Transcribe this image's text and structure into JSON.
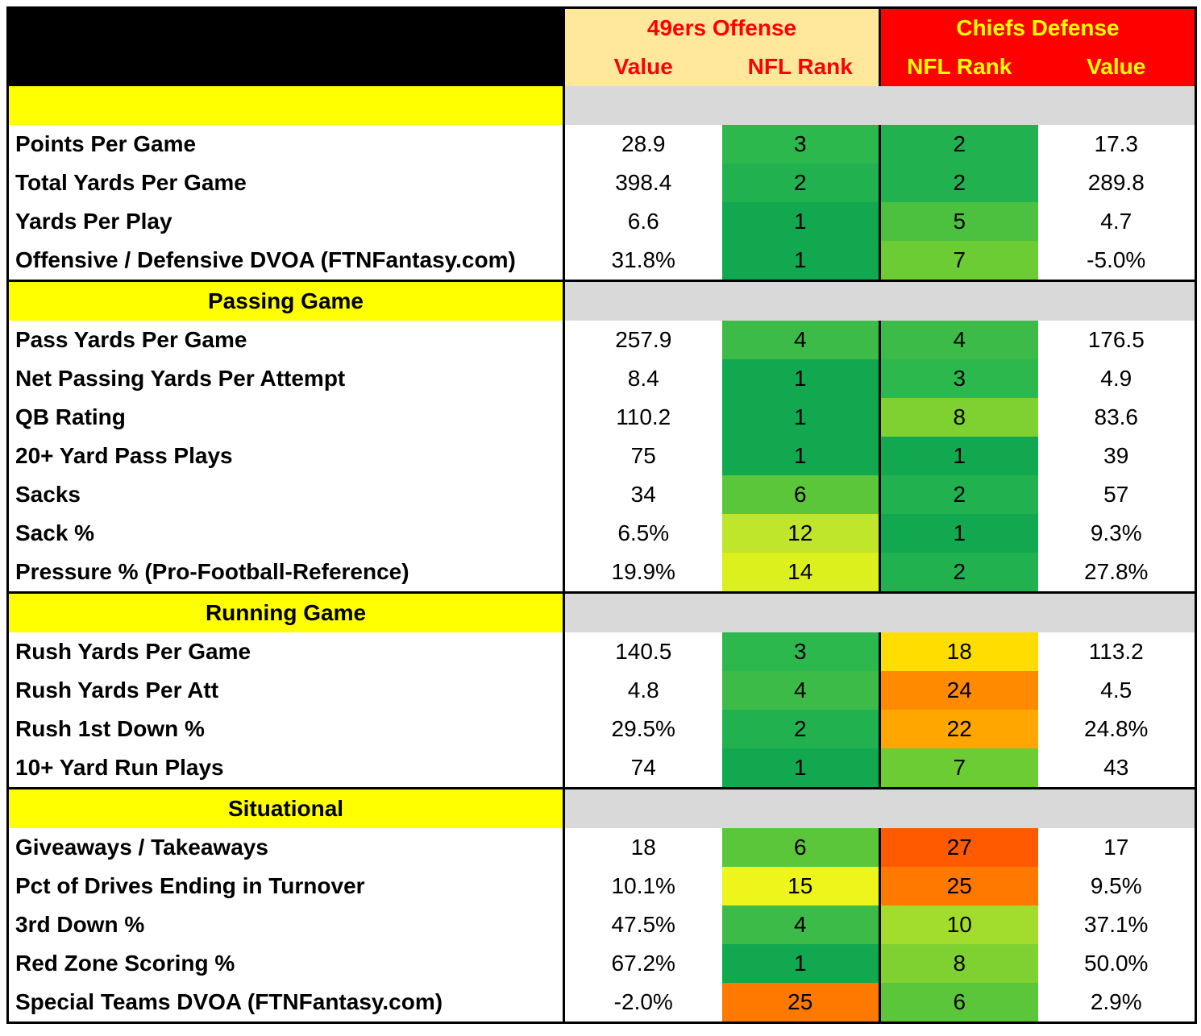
{
  "header": {
    "team_offense": "49ers Offense",
    "team_defense": "Chiefs Defense",
    "col_value": "Value",
    "col_rank": "NFL Rank",
    "colors": {
      "offense_bg": "#ffe79c",
      "offense_text": "#ff0000",
      "defense_bg": "#ff0000",
      "defense_text": "#ffff00"
    }
  },
  "sections": [
    {
      "title": "",
      "rows": [
        {
          "label": "Points Per Game",
          "off_value": "28.9",
          "off_rank": "3",
          "def_rank": "2",
          "def_value": "17.3",
          "off_color": "#2db84e",
          "def_color": "#21b14f"
        },
        {
          "label": "Total Yards Per Game",
          "off_value": "398.4",
          "off_rank": "2",
          "def_rank": "2",
          "def_value": "289.8",
          "off_color": "#21b14f",
          "def_color": "#21b14f"
        },
        {
          "label": "Yards Per Play",
          "off_value": "6.6",
          "off_rank": "1",
          "def_rank": "5",
          "def_value": "4.7",
          "off_color": "#12a84f",
          "def_color": "#4cc13f"
        },
        {
          "label": "Offensive / Defensive DVOA (FTNFantasy.com)",
          "off_value": "31.8%",
          "off_rank": "1",
          "def_rank": "7",
          "def_value": "-5.0%",
          "off_color": "#12a84f",
          "def_color": "#6ccc34"
        }
      ]
    },
    {
      "title": "Passing Game",
      "rows": [
        {
          "label": "Pass Yards Per Game",
          "off_value": "257.9",
          "off_rank": "4",
          "def_rank": "4",
          "def_value": "176.5",
          "off_color": "#3dbb48",
          "def_color": "#3dbb48"
        },
        {
          "label": "Net Passing Yards Per Attempt",
          "off_value": "8.4",
          "off_rank": "1",
          "def_rank": "3",
          "def_value": "4.9",
          "off_color": "#12a84f",
          "def_color": "#2db84e"
        },
        {
          "label": "QB Rating",
          "off_value": "110.2",
          "off_rank": "1",
          "def_rank": "8",
          "def_value": "83.6",
          "off_color": "#12a84f",
          "def_color": "#7fd132"
        },
        {
          "label": "20+ Yard Pass Plays",
          "off_value": "75",
          "off_rank": "1",
          "def_rank": "1",
          "def_value": "39",
          "off_color": "#12a84f",
          "def_color": "#12a84f"
        },
        {
          "label": "Sacks",
          "off_value": "34",
          "off_rank": "6",
          "def_rank": "2",
          "def_value": "57",
          "off_color": "#5cc63a",
          "def_color": "#21b14f"
        },
        {
          "label": "Sack %",
          "off_value": "6.5%",
          "off_rank": "12",
          "def_rank": "1",
          "def_value": "9.3%",
          "off_color": "#bfe62a",
          "def_color": "#12a84f"
        },
        {
          "label": "Pressure % (Pro-Football-Reference)",
          "off_value": "19.9%",
          "off_rank": "14",
          "def_rank": "2",
          "def_value": "27.8%",
          "off_color": "#dcf01e",
          "def_color": "#21b14f"
        }
      ]
    },
    {
      "title": "Running Game",
      "rows": [
        {
          "label": "Rush Yards Per Game",
          "off_value": "140.5",
          "off_rank": "3",
          "def_rank": "18",
          "def_value": "113.2",
          "off_color": "#2db84e",
          "def_color": "#ffdd00"
        },
        {
          "label": "Rush Yards Per Att",
          "off_value": "4.8",
          "off_rank": "4",
          "def_rank": "24",
          "def_value": "4.5",
          "off_color": "#3dbb48",
          "def_color": "#ff8a00"
        },
        {
          "label": "Rush 1st Down %",
          "off_value": "29.5%",
          "off_rank": "2",
          "def_rank": "22",
          "def_value": "24.8%",
          "off_color": "#21b14f",
          "def_color": "#ffa600"
        },
        {
          "label": "10+ Yard Run Plays",
          "off_value": "74",
          "off_rank": "1",
          "def_rank": "7",
          "def_value": "43",
          "off_color": "#12a84f",
          "def_color": "#6ccc34"
        }
      ]
    },
    {
      "title": "Situational",
      "rows": [
        {
          "label": "Giveaways / Takeaways",
          "off_value": "18",
          "off_rank": "6",
          "def_rank": "27",
          "def_value": "17",
          "off_color": "#5cc63a",
          "def_color": "#ff5a00"
        },
        {
          "label": "Pct of Drives Ending in Turnover",
          "off_value": "10.1%",
          "off_rank": "15",
          "def_rank": "25",
          "def_value": "9.5%",
          "off_color": "#eef51a",
          "def_color": "#ff7800"
        },
        {
          "label": "3rd Down %",
          "off_value": "47.5%",
          "off_rank": "4",
          "def_rank": "10",
          "def_value": "37.1%",
          "off_color": "#3dbb48",
          "def_color": "#a2dc2c"
        },
        {
          "label": "Red Zone Scoring %",
          "off_value": "67.2%",
          "off_rank": "1",
          "def_rank": "8",
          "def_value": "50.0%",
          "off_color": "#12a84f",
          "def_color": "#7fd132"
        },
        {
          "label": "Special Teams DVOA  (FTNFantasy.com)",
          "off_value": "-2.0%",
          "off_rank": "25",
          "def_rank": "6",
          "def_value": "2.9%",
          "off_color": "#ff7800",
          "def_color": "#5cc63a"
        }
      ]
    }
  ]
}
